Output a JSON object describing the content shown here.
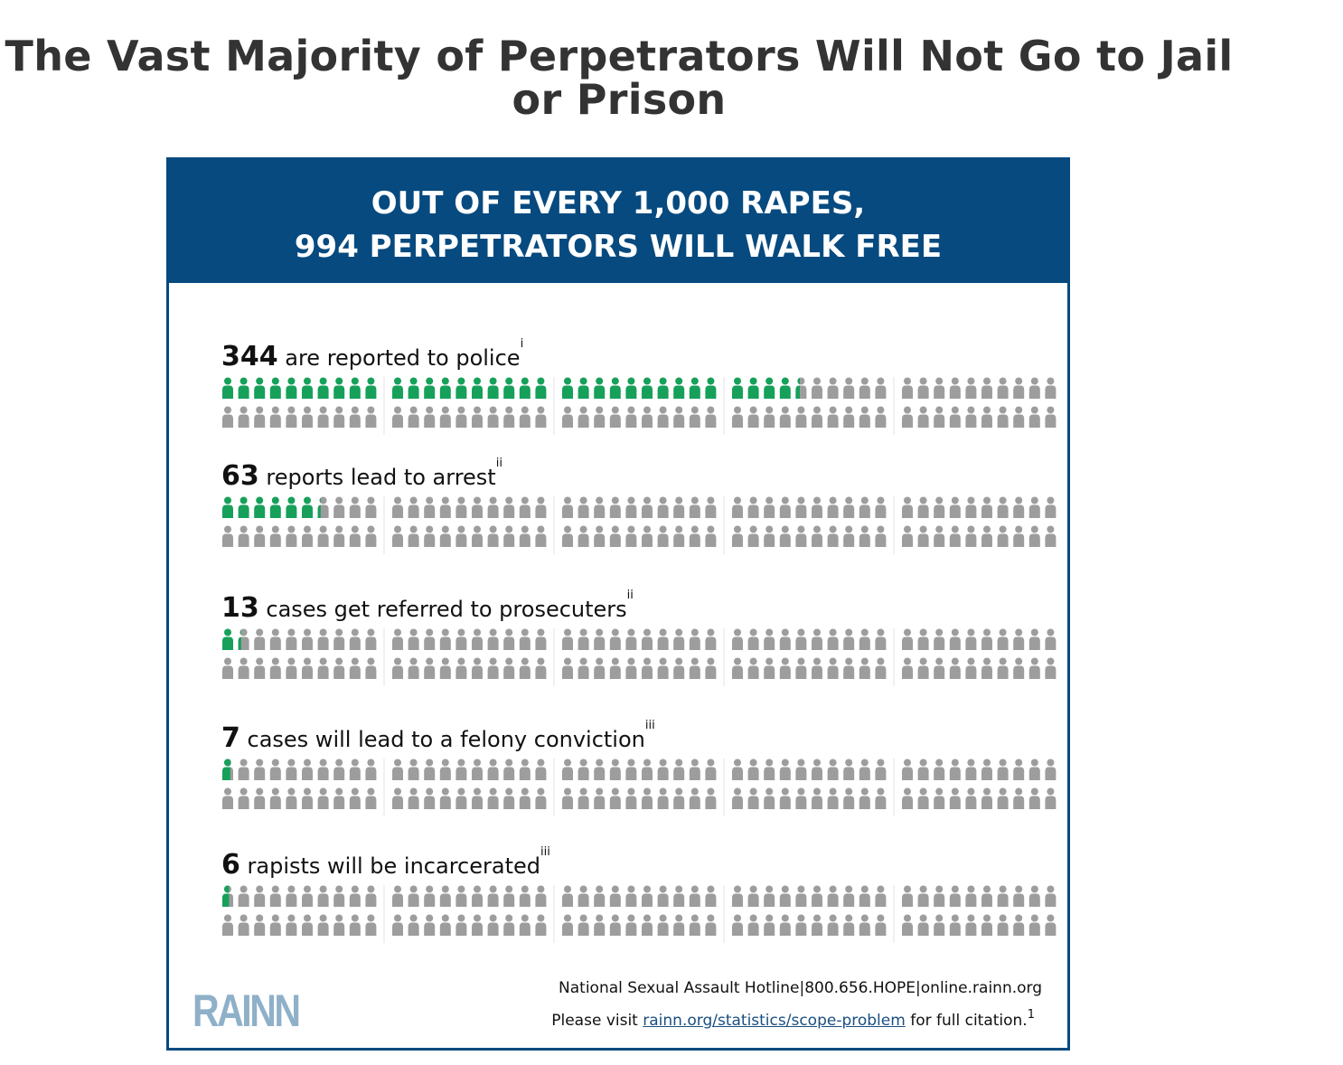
{
  "page": {
    "title": "The Vast Majority of Perpetrators Will Not Go to Jail or Prison"
  },
  "header": {
    "line1": "OUT OF EVERY 1,000 RAPES,",
    "line2": "994 PERPETRATORS WILL WALK FREE"
  },
  "footer": {
    "hotline": "National Sexual Assault Hotline|800.656.HOPE|online.rainn.org",
    "visit_prefix": "Please visit",
    "visit_link": "rainn.org/statistics/scope-problem",
    "visit_suffix": "for full citation.",
    "footnote_mark": "1",
    "logo_text": "RAINN"
  },
  "colors": {
    "header_bg": "#064a7f",
    "highlight": "#16a05a",
    "inactive": "#9d9d9d",
    "logo": "#8fb0c9"
  },
  "chart_data": {
    "type": "pictogram",
    "total_per_row": 100,
    "rows": [
      {
        "value": 344,
        "label": "are reported to police",
        "note": "i"
      },
      {
        "value": 63,
        "label": "reports lead to arrest",
        "note": "ii"
      },
      {
        "value": 13,
        "label": "cases get referred to prosecuters",
        "note": "ii"
      },
      {
        "value": 7,
        "label": "cases will lead to a felony conviction",
        "note": "iii"
      },
      {
        "value": 6,
        "label": "rapists will be incarcerated",
        "note": "iii"
      }
    ]
  }
}
